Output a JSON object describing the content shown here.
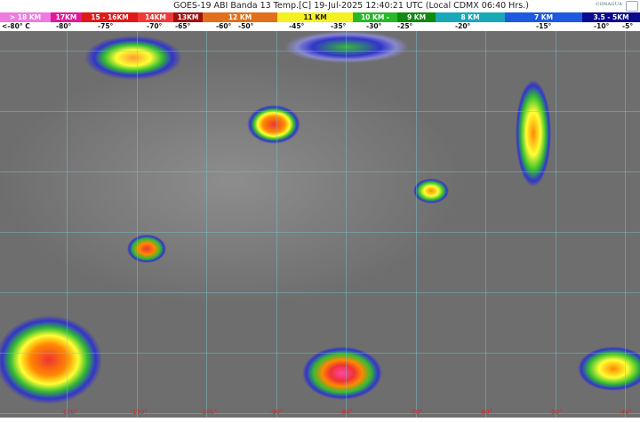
{
  "header": {
    "title": "GOES-19 ABI Banda 13 Temp.[C] 19-Jul-2025 12:40:21 UTC (Local CDMX  06:40 Hrs.)",
    "logo_text": "CONAGUA"
  },
  "legend": [
    {
      "label": "> 18 KM",
      "color": "#f07ae0"
    },
    {
      "label": "17KM",
      "color": "#e0189a"
    },
    {
      "label": "15 - 16KM",
      "color": "#e01818"
    },
    {
      "label": "14KM",
      "color": "#f03a3a"
    },
    {
      "label": "13KM",
      "color": "#a01010"
    },
    {
      "label": "12 KM",
      "color": "#e0701a"
    },
    {
      "label": "11 KM",
      "color": "#f5f020"
    },
    {
      "label": "10 KM -",
      "color": "#28b828"
    },
    {
      "label": "9 KM",
      "color": "#108a10"
    },
    {
      "label": "8 KM",
      "color": "#18a8b8"
    },
    {
      "label": "7 KM",
      "color": "#1e5ae0"
    },
    {
      "label": "3.5 - 5KM",
      "color": "#0a0a90"
    }
  ],
  "temps": [
    "<-80° C",
    "-80°",
    "-75°",
    "-70°",
    "-65°",
    "-60°",
    "-50°",
    "-45°",
    "-35°",
    "-30°",
    "-25°",
    "-20°",
    "-15°",
    "-10°",
    "-5°"
  ],
  "longitudes": [
    "-120°",
    "-110°",
    "-100°",
    "-90°",
    "-80°",
    "-70°",
    "-60°",
    "-50°",
    "-40°"
  ]
}
